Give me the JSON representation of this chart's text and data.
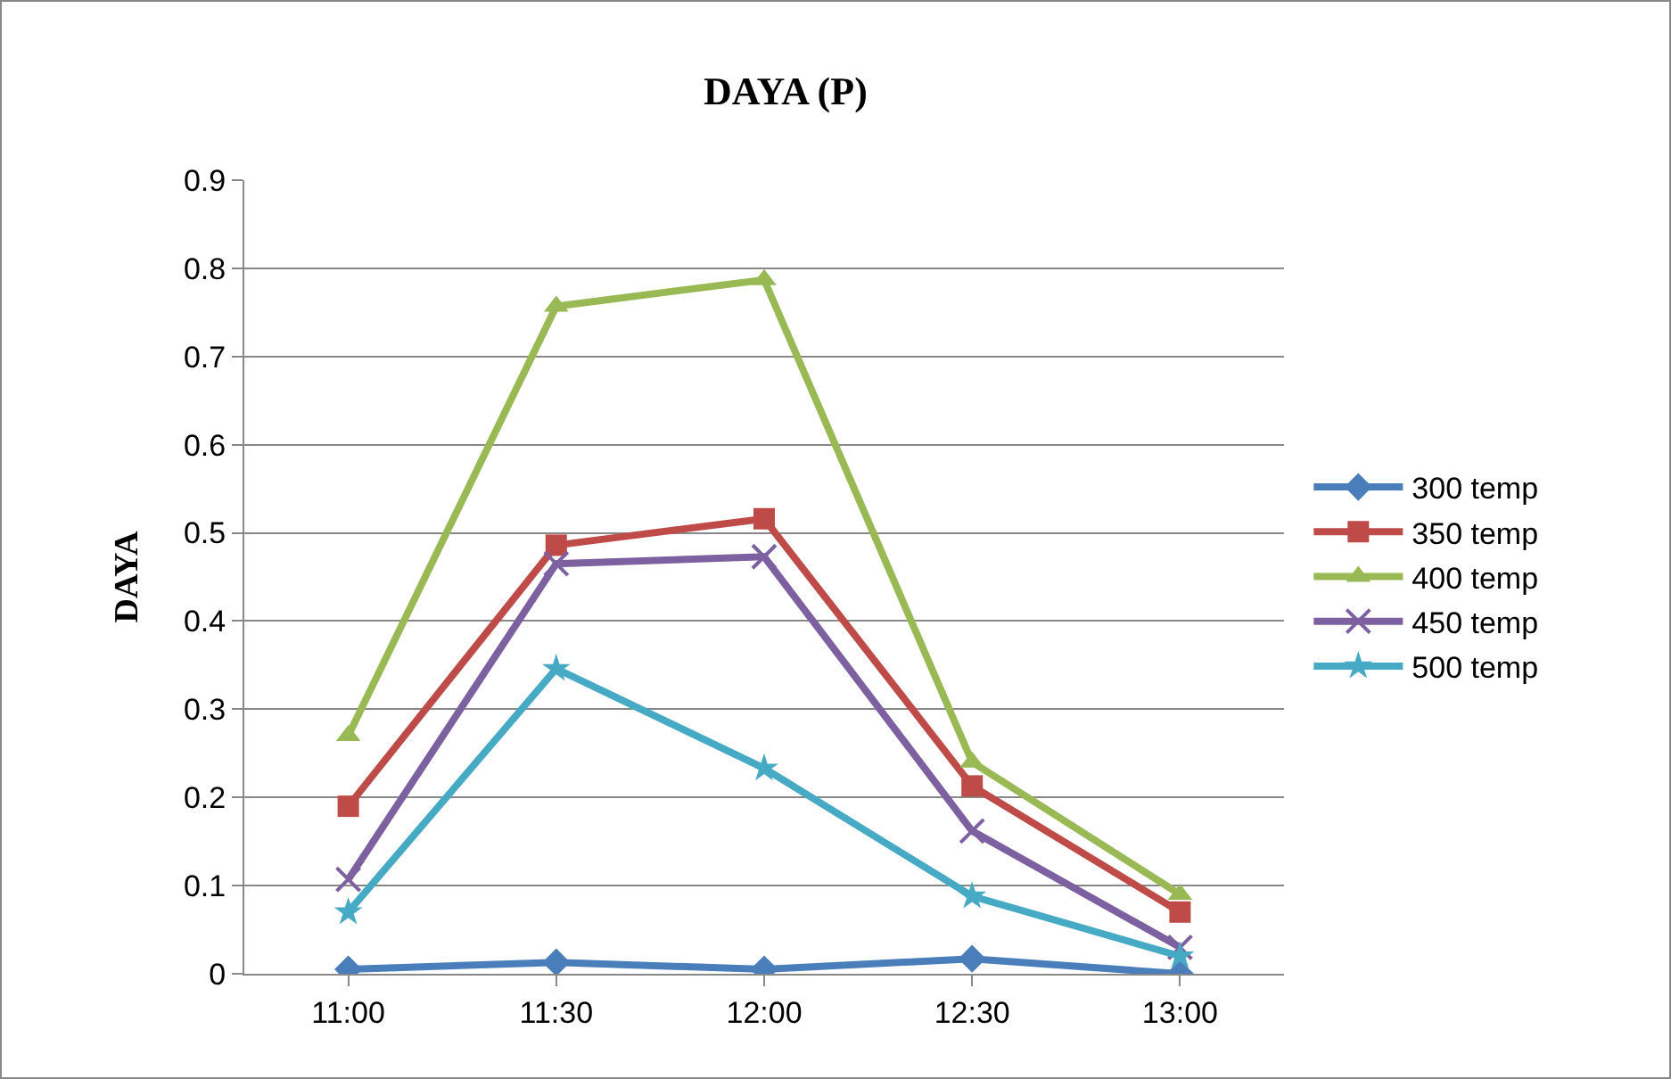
{
  "chart_data": {
    "type": "line",
    "title": "DAYA (P)",
    "ylabel": "DAYA",
    "categories": [
      "11:00",
      "11:30",
      "12:00",
      "12:30",
      "13:00"
    ],
    "series": [
      {
        "name": "300 temp",
        "color": "#4a7ebb",
        "marker": "diamond",
        "values": [
          0.005,
          0.013,
          0.005,
          0.017,
          0
        ]
      },
      {
        "name": "350 temp",
        "color": "#be4b48",
        "marker": "square",
        "values": [
          0.19,
          0.486,
          0.516,
          0.213,
          0.07
        ]
      },
      {
        "name": "400 temp",
        "color": "#98b954",
        "marker": "triangle",
        "values": [
          0.27,
          0.757,
          0.787,
          0.24,
          0.09
        ]
      },
      {
        "name": "450 temp",
        "color": "#7d60a0",
        "marker": "cross",
        "values": [
          0.107,
          0.465,
          0.473,
          0.162,
          0.03
        ]
      },
      {
        "name": "500 temp",
        "color": "#46aac5",
        "marker": "star",
        "values": [
          0.07,
          0.346,
          0.233,
          0.088,
          0.02
        ]
      }
    ],
    "ylim": [
      0,
      0.9
    ],
    "yticks": [
      0,
      0.1,
      0.2,
      0.3,
      0.4,
      0.5,
      0.6,
      0.7,
      0.8,
      0.9
    ],
    "grid": "y",
    "legend": "right"
  }
}
